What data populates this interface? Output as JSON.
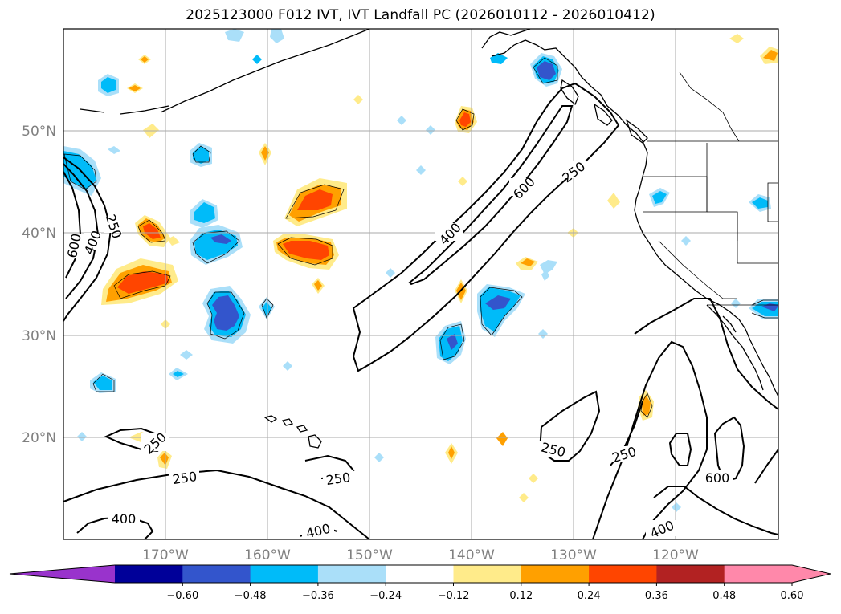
{
  "title": "2025123000 F012 IVT, IVT Landfall PC (2026010112 - 2026010412)",
  "axes": {
    "lat_labels": [
      "50°N",
      "40°N",
      "30°N",
      "20°N"
    ],
    "lon_labels": [
      "170°W",
      "160°W",
      "150°W",
      "140°W",
      "130°W",
      "120°W"
    ]
  },
  "contours": {
    "ivt_levels": [
      "250",
      "400",
      "600"
    ],
    "labels": [
      "250",
      "400",
      "600",
      "400",
      "250",
      "250",
      "250",
      "250",
      "250",
      "600",
      "250",
      "400",
      "400",
      "400"
    ]
  },
  "colorbar": {
    "ticks": [
      "−0.60",
      "−0.48",
      "−0.36",
      "−0.24",
      "−0.12",
      "0.12",
      "0.24",
      "0.36",
      "0.48",
      "0.60"
    ],
    "colors": [
      "#9933cc",
      "#000099",
      "#3355cc",
      "#00bbf9",
      "#aadff9",
      "#ffffff",
      "#ffeb8a",
      "#ffa000",
      "#ff4500",
      "#b22222",
      "#ff88aa",
      "#ff88aa"
    ]
  },
  "colors": {
    "neg_light": "#aadff9",
    "neg_mid": "#00bbf9",
    "neg_dark": "#3355cc",
    "pos_light": "#ffeb8a",
    "pos_mid": "#ffa000",
    "pos_dark": "#ff4500"
  }
}
